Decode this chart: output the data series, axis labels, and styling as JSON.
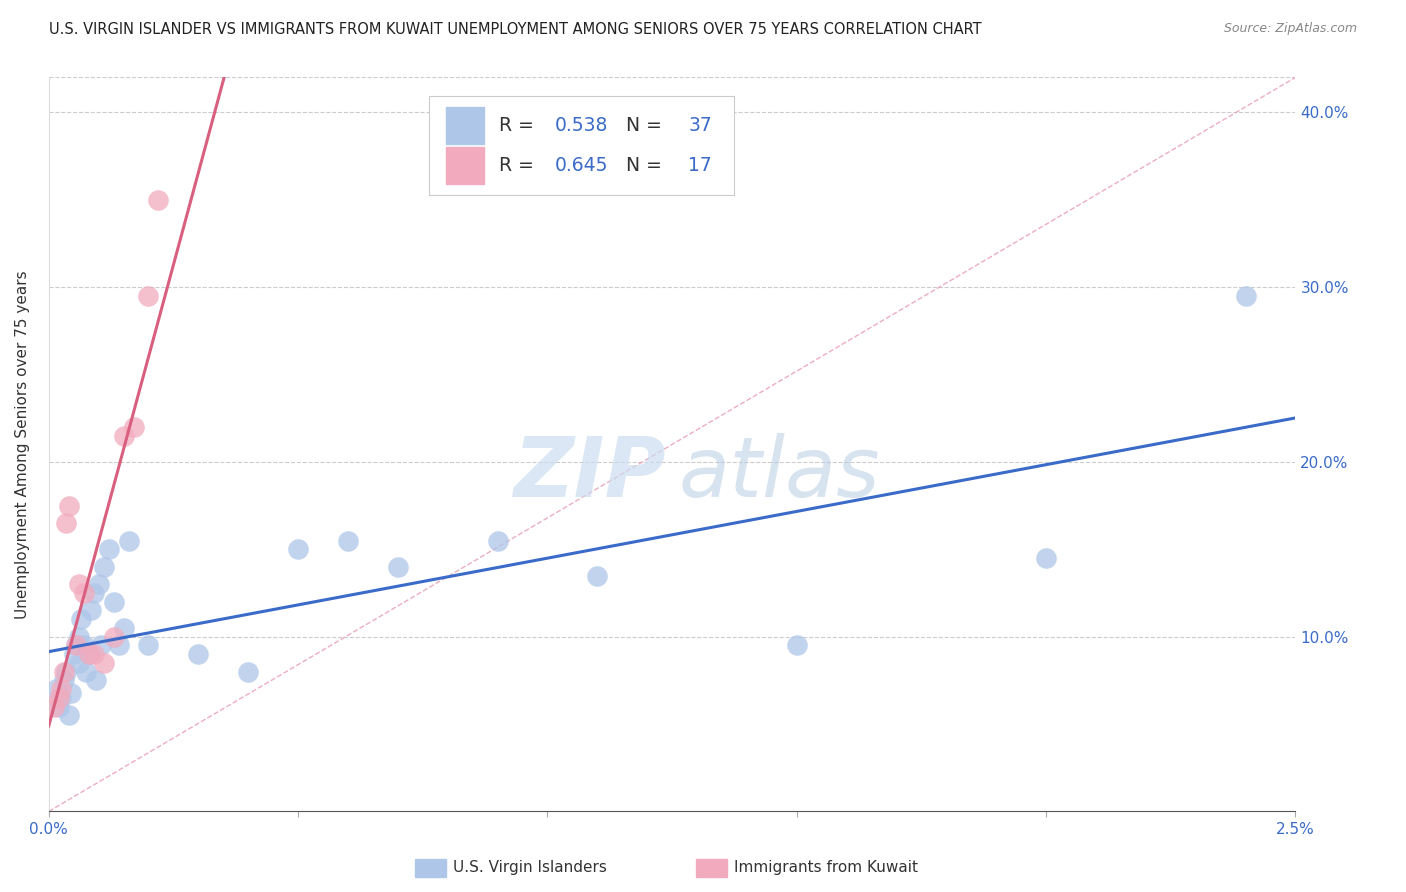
{
  "title": "U.S. VIRGIN ISLANDER VS IMMIGRANTS FROM KUWAIT UNEMPLOYMENT AMONG SENIORS OVER 75 YEARS CORRELATION CHART",
  "source": "Source: ZipAtlas.com",
  "ylabel": "Unemployment Among Seniors over 75 years",
  "xlim": [
    0.0,
    0.025
  ],
  "ylim": [
    0.0,
    0.42
  ],
  "blue_R": 0.538,
  "blue_N": 37,
  "pink_R": 0.645,
  "pink_N": 17,
  "blue_label": "U.S. Virgin Islanders",
  "pink_label": "Immigrants from Kuwait",
  "blue_color": "#aec6e8",
  "pink_color": "#f2abbe",
  "blue_line_color": "#3a6bc9",
  "pink_line_color": "#d95f7f",
  "diag_color": "#e8a0b4",
  "watermark_zip": "ZIP",
  "watermark_atlas": "atlas",
  "blue_x": [
    0.00015,
    0.0002,
    0.00025,
    0.0003,
    0.00035,
    0.0004,
    0.00045,
    0.0005,
    0.00055,
    0.0006,
    0.0006,
    0.00065,
    0.0007,
    0.00075,
    0.0008,
    0.00085,
    0.0009,
    0.00095,
    0.001,
    0.00105,
    0.0011,
    0.0012,
    0.0013,
    0.0014,
    0.0015,
    0.0016,
    0.002,
    0.003,
    0.004,
    0.005,
    0.006,
    0.007,
    0.009,
    0.011,
    0.015,
    0.02,
    0.024
  ],
  "blue_y": [
    0.07,
    0.06,
    0.065,
    0.075,
    0.08,
    0.055,
    0.068,
    0.09,
    0.095,
    0.1,
    0.085,
    0.11,
    0.095,
    0.08,
    0.09,
    0.115,
    0.125,
    0.075,
    0.13,
    0.095,
    0.14,
    0.15,
    0.12,
    0.095,
    0.105,
    0.155,
    0.095,
    0.09,
    0.08,
    0.15,
    0.155,
    0.14,
    0.155,
    0.135,
    0.095,
    0.145,
    0.295
  ],
  "pink_x": [
    0.0001,
    0.0002,
    0.00025,
    0.0003,
    0.00035,
    0.0004,
    0.00055,
    0.0006,
    0.0007,
    0.0008,
    0.0009,
    0.0011,
    0.0013,
    0.0015,
    0.0017,
    0.002,
    0.0022
  ],
  "pink_y": [
    0.06,
    0.065,
    0.07,
    0.08,
    0.165,
    0.175,
    0.095,
    0.13,
    0.125,
    0.09,
    0.09,
    0.085,
    0.1,
    0.215,
    0.22,
    0.295,
    0.35
  ]
}
